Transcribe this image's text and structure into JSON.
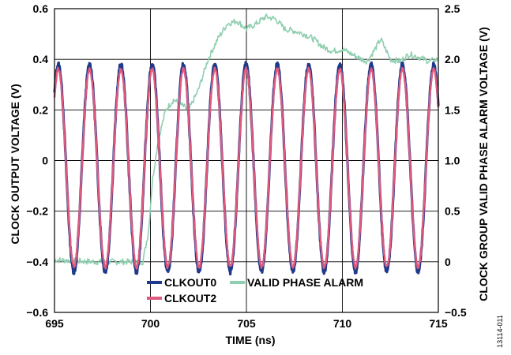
{
  "figure_code": "13114-011",
  "chart_data": {
    "type": "line",
    "xlabel": "TIME (ns)",
    "ylabel": "CLOCK OUTPUT VOLTAGE (V)",
    "y2label": "CLOCK GROUP VALID PHASE ALARM VOLTAGE (V)",
    "xlim": [
      695,
      715
    ],
    "ylim": [
      -0.6,
      0.6
    ],
    "y2lim": [
      -0.5,
      2.5
    ],
    "xticks": [
      "695",
      "700",
      "705",
      "710",
      "715"
    ],
    "yticks": [
      "−0.6",
      "−0.4",
      "−0.2",
      "0",
      "0.2",
      "0.4",
      "0.6"
    ],
    "y2ticks": [
      "−0.5",
      "0",
      "0.5",
      "1.0",
      "1.5",
      "2.0",
      "2.5"
    ],
    "grid": true,
    "legend_position": "bottom-center",
    "series": [
      {
        "name": "CLKOUT0",
        "axis": "left",
        "color": "#1f3a8a",
        "period_ns": 1.63,
        "phase_peak_ns": 695.2,
        "amplitude": 0.41,
        "offset": -0.03
      },
      {
        "name": "CLKOUT2",
        "axis": "left",
        "color": "#e05a7e",
        "period_ns": 1.63,
        "phase_peak_ns": 695.2,
        "amplitude": 0.39,
        "offset": -0.03
      },
      {
        "name": "VALID PHASE ALARM",
        "axis": "right",
        "color": "#8fcfb0",
        "x": [
          695,
          696,
          697,
          698,
          699,
          699.6,
          699.9,
          700.1,
          700.4,
          700.8,
          701.2,
          701.6,
          702.0,
          702.5,
          703.0,
          703.5,
          704.0,
          704.5,
          705.0,
          705.5,
          706.0,
          706.5,
          707.0,
          707.5,
          708.0,
          708.5,
          709.0,
          709.5,
          710.0,
          710.5,
          711.0,
          711.3,
          711.7,
          712.0,
          712.5,
          713.0,
          713.5,
          714.0,
          714.5,
          715.0
        ],
        "y": [
          0.02,
          0.01,
          0.0,
          0.0,
          0.0,
          0.0,
          0.3,
          0.8,
          1.2,
          1.5,
          1.6,
          1.55,
          1.5,
          1.7,
          2.0,
          2.2,
          2.35,
          2.38,
          2.3,
          2.35,
          2.42,
          2.4,
          2.3,
          2.28,
          2.25,
          2.2,
          2.12,
          2.08,
          2.1,
          2.05,
          2.0,
          1.98,
          2.1,
          2.2,
          2.0,
          1.98,
          2.05,
          2.02,
          1.98,
          2.0
        ]
      }
    ]
  }
}
